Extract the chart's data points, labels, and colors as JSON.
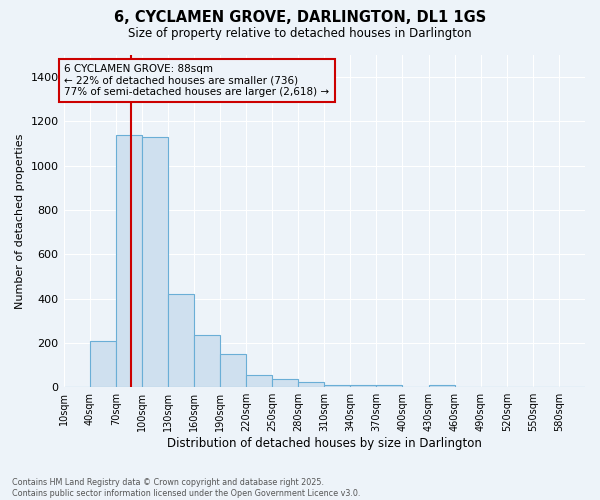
{
  "title": "6, CYCLAMEN GROVE, DARLINGTON, DL1 1GS",
  "subtitle": "Size of property relative to detached houses in Darlington",
  "xlabel": "Distribution of detached houses by size in Darlington",
  "ylabel": "Number of detached properties",
  "footer_line1": "Contains HM Land Registry data © Crown copyright and database right 2025.",
  "footer_line2": "Contains public sector information licensed under the Open Government Licence v3.0.",
  "bar_color": "#cfe0ef",
  "bar_edge_color": "#6aaed6",
  "background_color": "#edf3f9",
  "grid_color": "#ffffff",
  "annotation_box_color": "#cc0000",
  "vline_color": "#cc0000",
  "annotation_text_line1": "6 CYCLAMEN GROVE: 88sqm",
  "annotation_text_line2": "← 22% of detached houses are smaller (736)",
  "annotation_text_line3": "77% of semi-detached houses are larger (2,618) →",
  "property_sqm": 88,
  "bin_edges": [
    10,
    40,
    70,
    100,
    130,
    160,
    190,
    220,
    250,
    280,
    310,
    340,
    370,
    400,
    430,
    460,
    490,
    520,
    550,
    580,
    610
  ],
  "bar_heights": [
    0,
    210,
    1140,
    1130,
    420,
    235,
    150,
    57,
    37,
    25,
    10,
    10,
    10,
    0,
    10,
    0,
    0,
    0,
    0,
    0
  ],
  "ylim": [
    0,
    1500
  ],
  "yticks": [
    0,
    200,
    400,
    600,
    800,
    1000,
    1200,
    1400
  ]
}
